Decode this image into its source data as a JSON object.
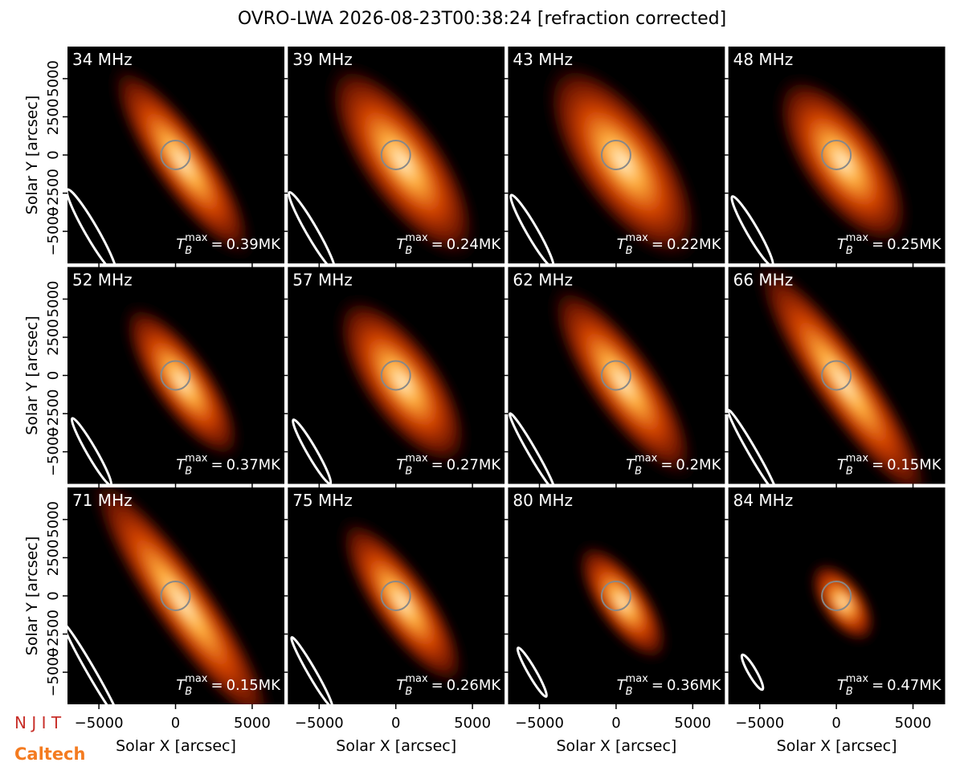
{
  "chart_data": {
    "type": "image-grid",
    "title": "OVRO-LWA 2026-08-23T00:38:24 [refraction corrected]",
    "xlabel": "Solar X [arcsec]",
    "ylabel": "Solar Y [arcsec]",
    "xlim": [
      -7050,
      7100
    ],
    "ylim": [
      -7100,
      7100
    ],
    "xticks": [
      {
        "value": -5000,
        "label": "−5000"
      },
      0,
      5000
    ],
    "yticks": [
      {
        "value": -5000,
        "label": "−5000"
      },
      {
        "value": -2500,
        "label": "−2500"
      },
      0,
      2500,
      5000
    ],
    "tb_label": {
      "base": "T",
      "sub": "B",
      "sup": "max",
      "eq": "="
    },
    "panels": [
      "34 MHz",
      "39 MHz",
      "43 MHz",
      "48 MHz",
      "52 MHz",
      "57 MHz",
      "62 MHz",
      "66 MHz",
      "71 MHz",
      "75 MHz",
      "80 MHz",
      "84 MHz"
    ],
    "values": [
      0.39,
      0.24,
      0.22,
      0.25,
      0.37,
      0.27,
      0.2,
      0.15,
      0.15,
      0.26,
      0.36,
      0.47
    ],
    "value_labels": [
      "0.39MK",
      "0.24MK",
      "0.22MK",
      "0.25MK",
      "0.37MK",
      "0.27MK",
      "0.2MK",
      "0.15MK",
      "0.15MK",
      "0.26MK",
      "0.36MK",
      "0.47MK"
    ]
  },
  "logos": {
    "njit": "N J I T",
    "caltech": "Caltech"
  }
}
